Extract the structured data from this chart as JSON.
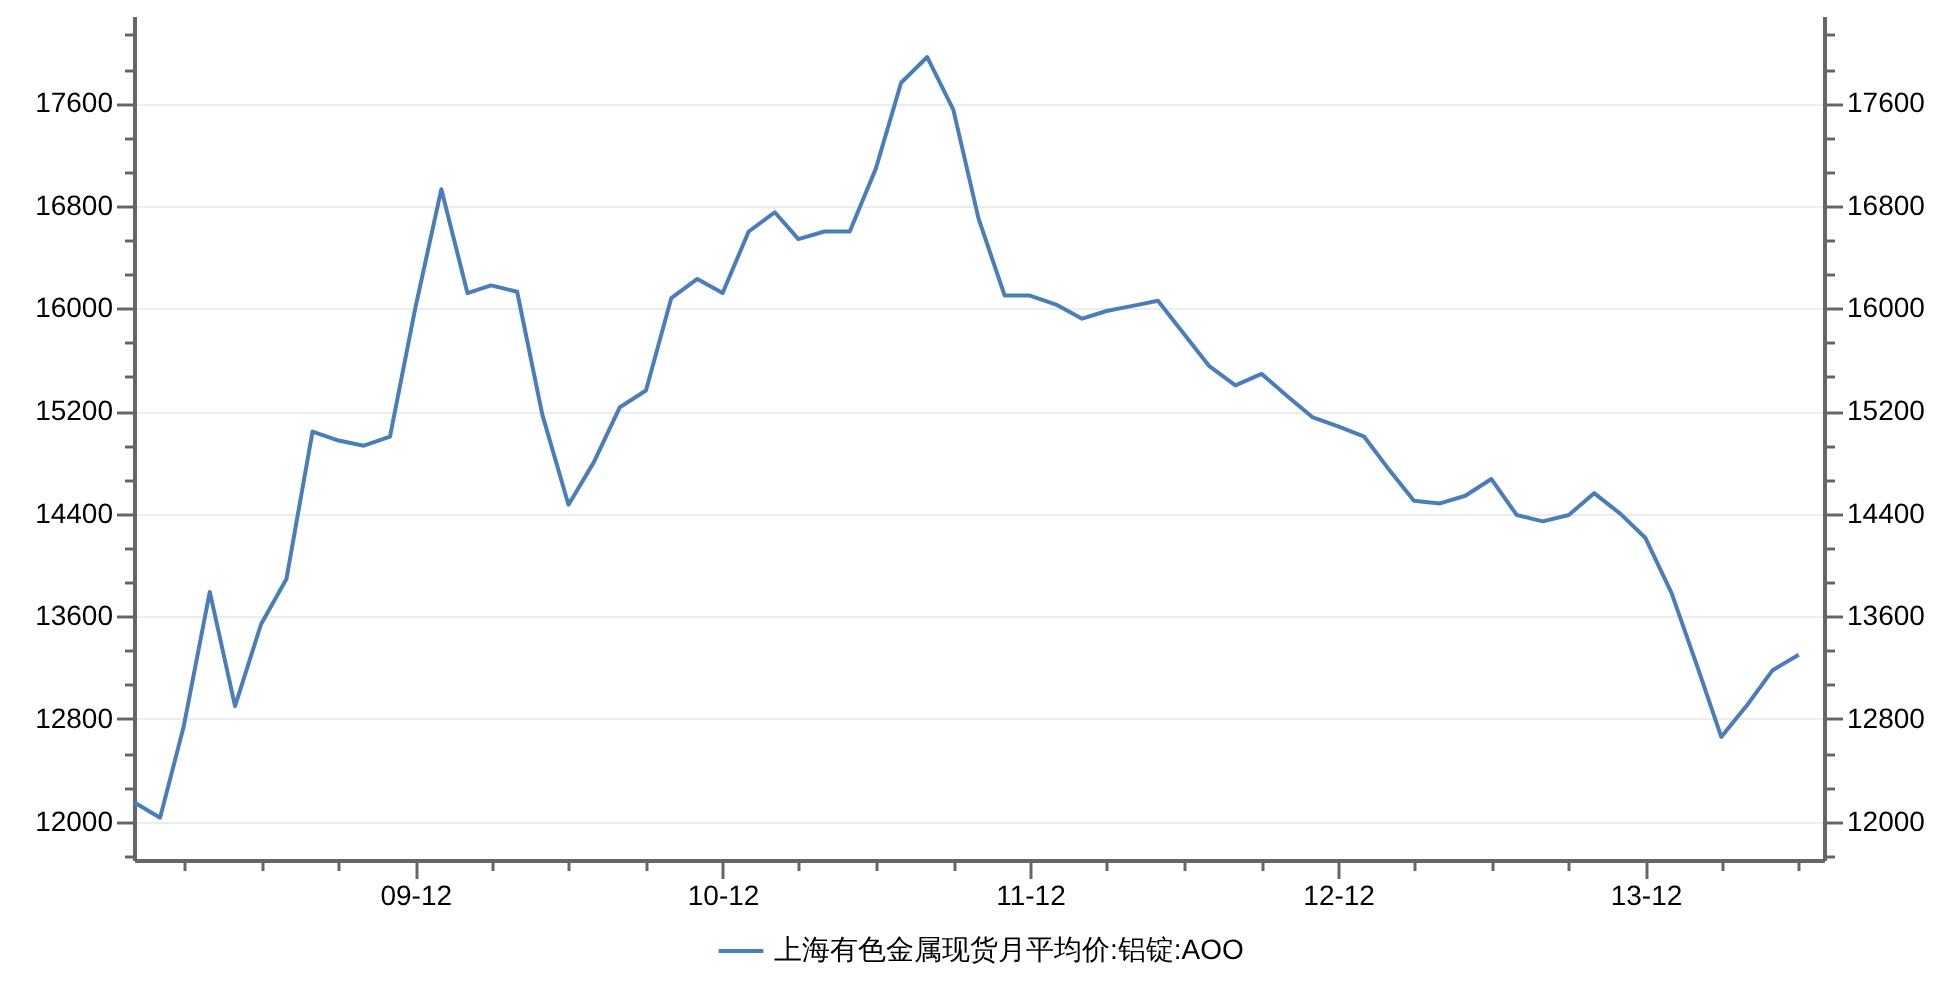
{
  "chart_data": {
    "type": "line",
    "x": [
      "2009-01",
      "2009-02",
      "2009-03",
      "2009-04",
      "2009-05",
      "2009-06",
      "2009-07",
      "2009-08",
      "2009-09",
      "2009-10",
      "2009-11",
      "2009-12",
      "2010-01",
      "2010-02",
      "2010-03",
      "2010-04",
      "2010-05",
      "2010-06",
      "2010-07",
      "2010-08",
      "2010-09",
      "2010-10",
      "2010-11",
      "2010-12",
      "2011-01",
      "2011-02",
      "2011-03",
      "2011-04",
      "2011-05",
      "2011-06",
      "2011-07",
      "2011-08",
      "2011-09",
      "2011-10",
      "2011-11",
      "2011-12",
      "2012-01",
      "2012-02",
      "2012-03",
      "2012-04",
      "2012-05",
      "2012-06",
      "2012-07",
      "2012-08",
      "2012-09",
      "2012-10",
      "2012-11",
      "2012-12",
      "2013-01",
      "2013-02",
      "2013-03",
      "2013-04",
      "2013-05",
      "2013-06",
      "2013-07",
      "2013-08",
      "2013-09",
      "2013-10",
      "2013-11",
      "2013-12",
      "2014-01",
      "2014-02",
      "2014-03",
      "2014-04",
      "2014-05",
      "2014-06"
    ],
    "series": [
      {
        "name": "上海有色金属现货月平均价:铝锭:AOO",
        "color": "#4a7ebb",
        "values": [
          12150,
          12030,
          12740,
          13790,
          12900,
          13540,
          13890,
          15040,
          14970,
          14930,
          15000,
          16000,
          16930,
          16120,
          16180,
          16130,
          15170,
          14470,
          14800,
          15230,
          15360,
          16080,
          16230,
          16120,
          16600,
          16750,
          16540,
          16600,
          16600,
          17090,
          17760,
          17960,
          17550,
          16700,
          16100,
          16100,
          16030,
          15920,
          15980,
          16020,
          16060,
          15800,
          15550,
          15400,
          15490,
          15320,
          15150,
          15080,
          15000,
          14730,
          14500,
          14480,
          14540,
          14670,
          14390,
          14340,
          14390,
          14560,
          14400,
          14210,
          13780,
          13200,
          12660,
          12910,
          13180,
          13300
        ]
      }
    ],
    "xlim": [
      "2009-01",
      "2014-07"
    ],
    "xticks": [
      {
        "value": "2009-03",
        "label": null
      },
      {
        "value": "2009-06",
        "label": null
      },
      {
        "value": "2009-09",
        "label": null
      },
      {
        "value": "2009-12",
        "label": "09-12"
      },
      {
        "value": "2010-03",
        "label": null
      },
      {
        "value": "2010-06",
        "label": null
      },
      {
        "value": "2010-09",
        "label": null
      },
      {
        "value": "2010-12",
        "label": "10-12"
      },
      {
        "value": "2011-03",
        "label": null
      },
      {
        "value": "2011-06",
        "label": null
      },
      {
        "value": "2011-09",
        "label": null
      },
      {
        "value": "2011-12",
        "label": "11-12"
      },
      {
        "value": "2012-03",
        "label": null
      },
      {
        "value": "2012-06",
        "label": null
      },
      {
        "value": "2012-09",
        "label": null
      },
      {
        "value": "2012-12",
        "label": "12-12"
      },
      {
        "value": "2013-03",
        "label": null
      },
      {
        "value": "2013-06",
        "label": null
      },
      {
        "value": "2013-09",
        "label": null
      },
      {
        "value": "2013-12",
        "label": "13-12"
      },
      {
        "value": "2014-03",
        "label": null
      },
      {
        "value": "2014-06",
        "label": null
      }
    ],
    "ylim": [
      11700,
      18280
    ],
    "yticks": [
      {
        "value": 11733.33,
        "label": null
      },
      12000,
      {
        "value": 12266.67,
        "label": null
      },
      {
        "value": 12533.33,
        "label": null
      },
      12800,
      {
        "value": 13066.67,
        "label": null
      },
      {
        "value": 13333.33,
        "label": null
      },
      13600,
      {
        "value": 13866.67,
        "label": null
      },
      {
        "value": 14133.33,
        "label": null
      },
      14400,
      {
        "value": 14666.67,
        "label": null
      },
      {
        "value": 14933.33,
        "label": null
      },
      15200,
      {
        "value": 15466.67,
        "label": null
      },
      {
        "value": 15733.33,
        "label": null
      },
      16000,
      {
        "value": 16266.67,
        "label": null
      },
      {
        "value": 16533.33,
        "label": null
      },
      16800,
      {
        "value": 17066.67,
        "label": null
      },
      {
        "value": 17333.33,
        "label": null
      },
      17600,
      {
        "value": 17866.67,
        "label": null
      },
      {
        "value": 18133.33,
        "label": null
      }
    ],
    "y2lim": [
      11700,
      18280
    ],
    "y2ticks": [
      {
        "value": 11733.33,
        "label": null
      },
      12000,
      {
        "value": 12266.67,
        "label": null
      },
      {
        "value": 12533.33,
        "label": null
      },
      12800,
      {
        "value": 13066.67,
        "label": null
      },
      {
        "value": 13333.33,
        "label": null
      },
      13600,
      {
        "value": 13866.67,
        "label": null
      },
      {
        "value": 14133.33,
        "label": null
      },
      14400,
      {
        "value": 14666.67,
        "label": null
      },
      {
        "value": 14933.33,
        "label": null
      },
      15200,
      {
        "value": 15466.67,
        "label": null
      },
      {
        "value": 15733.33,
        "label": null
      },
      16000,
      {
        "value": 16266.67,
        "label": null
      },
      {
        "value": 16533.33,
        "label": null
      },
      16800,
      {
        "value": 17066.67,
        "label": null
      },
      {
        "value": 17333.33,
        "label": null
      },
      17600,
      {
        "value": 17866.67,
        "label": null
      },
      {
        "value": 18133.33,
        "label": null
      }
    ],
    "grid": "y",
    "legend": "bottom",
    "marker": "none",
    "line_style": "solid"
  }
}
